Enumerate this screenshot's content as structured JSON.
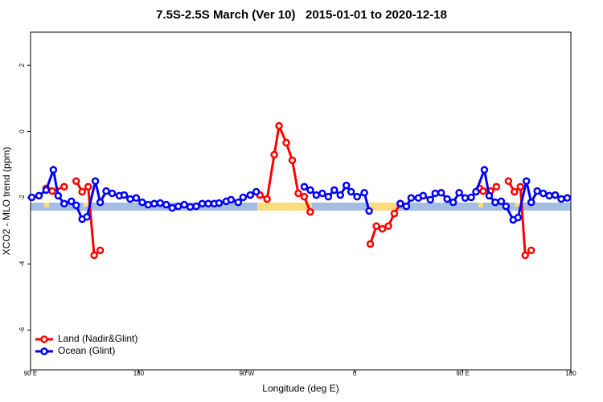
{
  "chart_data": {
    "type": "line",
    "title": "7.5S-2.5S March (Ver 10)   2015-01-01 to 2020-12-18",
    "xlabel": "Longitude (deg E)",
    "ylabel": "XCO2 - MLO trend (ppm)",
    "xlim": [
      90,
      540
    ],
    "xticks": [
      {
        "value": 90,
        "label": "90 E"
      },
      180,
      {
        "value": 270,
        "label": "90 W"
      },
      {
        "value": 360,
        "label": "0"
      },
      {
        "value": 450,
        "label": "90 E"
      },
      {
        "value": 540,
        "label": "180"
      }
    ],
    "ylim": [
      -7.2,
      3
    ],
    "yticks": [
      2,
      0,
      -2,
      -4,
      -6
    ],
    "legend": "bottom-left",
    "series": [
      {
        "name": "Land (Nadir&Glint)",
        "color": "#ff0000",
        "x": [
          103,
          108,
          118,
          123,
          128,
          133,
          138,
          143,
          148,
          200,
          281,
          287,
          293,
          297,
          303,
          308,
          313,
          318,
          323,
          350,
          373,
          378,
          383,
          388,
          393,
          398,
          430,
          464,
          467,
          473,
          478,
          482,
          488,
          493,
          498,
          502,
          507
        ],
        "values": [
          -1.72,
          -1.8,
          -1.67,
          null,
          -1.5,
          -1.82,
          -1.67,
          -3.74,
          -3.59,
          null,
          -1.92,
          -2.04,
          -0.7,
          0.17,
          -0.34,
          -0.87,
          -1.87,
          -1.97,
          -2.43,
          null,
          -3.4,
          -2.86,
          -2.94,
          -2.86,
          -2.48,
          -2.18,
          null,
          -1.72,
          -1.8,
          -1.8,
          -1.67,
          null,
          -1.5,
          -1.82,
          -1.67,
          -3.74,
          -3.59
        ]
      },
      {
        "name": "Ocean (Glint)",
        "color": "#0000ff",
        "x": [
          91,
          97,
          103,
          109,
          113,
          118,
          124,
          128,
          133,
          137,
          144,
          148,
          153,
          158,
          164,
          168,
          173,
          178,
          183,
          188,
          193,
          198,
          203,
          208,
          213,
          218,
          223,
          228,
          233,
          238,
          243,
          247,
          253,
          257,
          263,
          267,
          273,
          278,
          298,
          318,
          323,
          328,
          333,
          338,
          343,
          348,
          353,
          357,
          362,
          368,
          372,
          385,
          398,
          403,
          407,
          413,
          417,
          423,
          427,
          432,
          437,
          442,
          447,
          452,
          457,
          461,
          468,
          472,
          477,
          482,
          486,
          492,
          496,
          503,
          507,
          512,
          517,
          522,
          527,
          532,
          537
        ],
        "values": [
          -1.99,
          -1.94,
          -1.77,
          -1.16,
          -1.94,
          -2.18,
          -2.11,
          -2.23,
          -2.65,
          -2.58,
          -1.5,
          -2.14,
          -1.8,
          -1.87,
          -1.94,
          -1.92,
          -2.04,
          -2.01,
          -2.14,
          -2.21,
          -2.18,
          -2.16,
          -2.21,
          -2.31,
          -2.26,
          -2.21,
          -2.28,
          -2.26,
          -2.18,
          -2.18,
          -2.18,
          -2.16,
          -2.11,
          -2.06,
          -2.14,
          -1.99,
          -1.92,
          -1.82,
          null,
          -1.67,
          -1.77,
          -1.92,
          -1.87,
          -1.97,
          -1.77,
          -1.92,
          -1.63,
          -1.82,
          -1.97,
          -1.85,
          -2.4,
          null,
          -2.18,
          -2.26,
          -2.01,
          -2.01,
          -1.94,
          -2.06,
          -1.87,
          -1.85,
          -2.04,
          -2.14,
          -1.85,
          -2.01,
          -1.99,
          -1.82,
          -1.16,
          -1.94,
          -2.14,
          -2.11,
          -2.26,
          -2.67,
          -2.6,
          -1.5,
          -2.14,
          -1.8,
          -1.87,
          -1.94,
          -1.92,
          -2.04,
          -2.01
        ]
      }
    ]
  }
}
